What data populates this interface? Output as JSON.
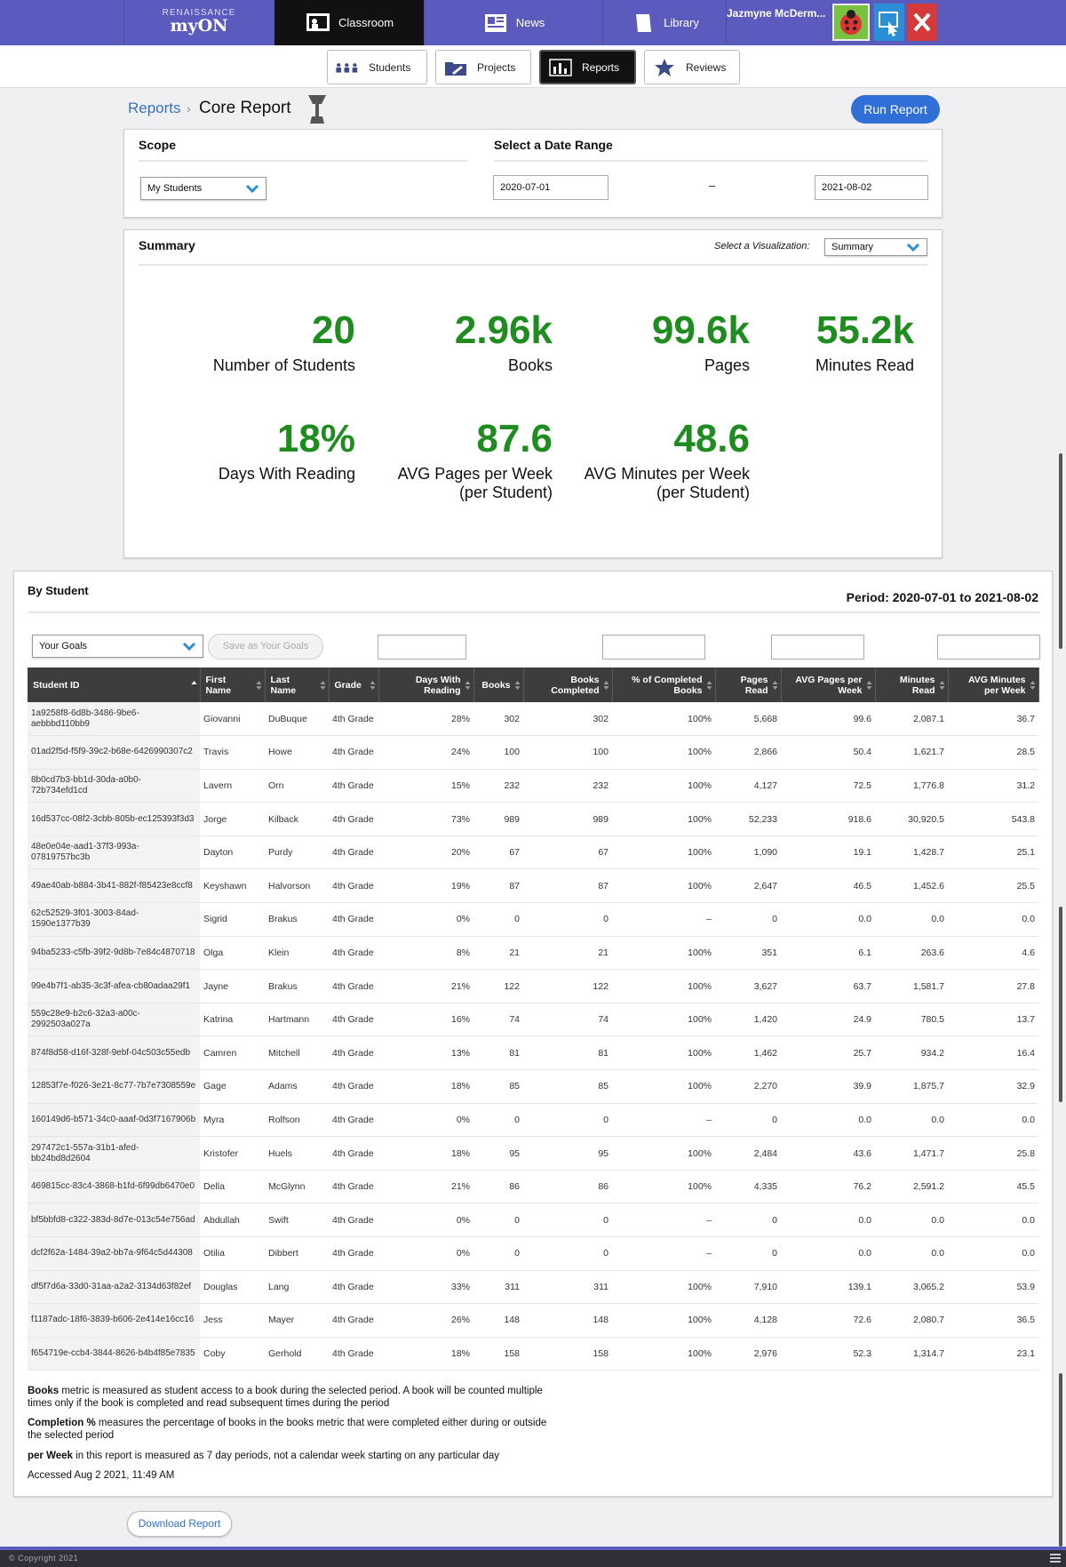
{
  "topnav": {
    "brand_small": "RENAISSANCE",
    "brand_big": "myON",
    "tabs": [
      {
        "label": "Classroom",
        "icon": "classroom-icon",
        "active": true
      },
      {
        "label": "News",
        "icon": "news-icon",
        "active": false
      },
      {
        "label": "Library",
        "icon": "library-icon",
        "active": false
      }
    ],
    "user_name": "Jazmyne McDerm..."
  },
  "subnav": {
    "tabs": [
      {
        "label": "Students",
        "icon": "students-icon"
      },
      {
        "label": "Projects",
        "icon": "projects-icon"
      },
      {
        "label": "Reports",
        "icon": "reports-icon",
        "active": true
      },
      {
        "label": "Reviews",
        "icon": "star-icon"
      }
    ]
  },
  "header": {
    "breadcrumb_link": "Reports",
    "breadcrumb_sep": "›",
    "title": "Core Report",
    "run_label": "Run Report"
  },
  "filters": {
    "scope_title": "Scope",
    "scope_value": "My Students",
    "date_title": "Select a Date Range",
    "date_from": "2020-07-01",
    "date_dash": "–",
    "date_to": "2021-08-02"
  },
  "summary": {
    "title": "Summary",
    "viz_label": "Select a Visualization:",
    "viz_value": "Summary",
    "kpis": [
      {
        "value": "20",
        "label": "Number of Students"
      },
      {
        "value": "2.96k",
        "label": "Books"
      },
      {
        "value": "99.6k",
        "label": "Pages"
      },
      {
        "value": "55.2k",
        "label": "Minutes Read"
      },
      {
        "value": "18%",
        "label": "Days With Reading"
      },
      {
        "value": "87.6",
        "label": "AVG Pages per Week",
        "label2": "(per Student)"
      },
      {
        "value": "48.6",
        "label": "AVG Minutes per Week",
        "label2": "(per Student)"
      }
    ]
  },
  "by_student": {
    "title": "By Student",
    "period": "Period: 2020-07-01 to 2021-08-02",
    "goals_value": "Your Goals",
    "save_goals_label": "Save as Your Goals",
    "columns": [
      "Student ID",
      "First Name",
      "Last Name",
      "Grade",
      "Days With Reading",
      "Books",
      "Books Completed",
      "% of Completed Books",
      "Pages Read",
      "AVG Pages per Week",
      "Minutes Read",
      "AVG Minutes per Week"
    ],
    "rows": [
      [
        "1a9258f8-6d8b-3486-9be6-aebbbd110bb9",
        "Giovanni",
        "DuBuque",
        "4th Grade",
        "28%",
        "302",
        "302",
        "100%",
        "5,668",
        "99.6",
        "2,087.1",
        "36.7"
      ],
      [
        "01ad2f5d-f5f9-39c2-b68e-6426990307c2",
        "Travis",
        "Howe",
        "4th Grade",
        "24%",
        "100",
        "100",
        "100%",
        "2,866",
        "50.4",
        "1,621.7",
        "28.5"
      ],
      [
        "8b0cd7b3-bb1d-30da-a0b0-72b734efd1cd",
        "Lavern",
        "Orn",
        "4th Grade",
        "15%",
        "232",
        "232",
        "100%",
        "4,127",
        "72.5",
        "1,776.8",
        "31.2"
      ],
      [
        "16d537cc-08f2-3cbb-805b-ec125393f3d3",
        "Jorge",
        "Kilback",
        "4th Grade",
        "73%",
        "989",
        "989",
        "100%",
        "52,233",
        "918.6",
        "30,920.5",
        "543.8"
      ],
      [
        "48e0e04e-aad1-37f3-993a-07819757bc3b",
        "Dayton",
        "Purdy",
        "4th Grade",
        "20%",
        "67",
        "67",
        "100%",
        "1,090",
        "19.1",
        "1,428.7",
        "25.1"
      ],
      [
        "49ae40ab-b884-3b41-882f-f85423e8ccf8",
        "Keyshawn",
        "Halvorson",
        "4th Grade",
        "19%",
        "87",
        "87",
        "100%",
        "2,647",
        "46.5",
        "1,452.6",
        "25.5"
      ],
      [
        "62c52529-3f01-3003-84ad-1590e1377b39",
        "Sigrid",
        "Brakus",
        "4th Grade",
        "0%",
        "0",
        "0",
        "–",
        "0",
        "0.0",
        "0.0",
        "0.0"
      ],
      [
        "94ba5233-c5fb-39f2-9d8b-7e84c4870718",
        "Olga",
        "Klein",
        "4th Grade",
        "8%",
        "21",
        "21",
        "100%",
        "351",
        "6.1",
        "263.6",
        "4.6"
      ],
      [
        "99e4b7f1-ab35-3c3f-afea-cb80adaa29f1",
        "Jayne",
        "Brakus",
        "4th Grade",
        "21%",
        "122",
        "122",
        "100%",
        "3,627",
        "63.7",
        "1,581.7",
        "27.8"
      ],
      [
        "559c28e9-b2c6-32a3-a00c-2992503a027a",
        "Katrina",
        "Hartmann",
        "4th Grade",
        "16%",
        "74",
        "74",
        "100%",
        "1,420",
        "24.9",
        "780.5",
        "13.7"
      ],
      [
        "874f8d58-d16f-328f-9ebf-04c503c55edb",
        "Camren",
        "Mitchell",
        "4th Grade",
        "13%",
        "81",
        "81",
        "100%",
        "1,462",
        "25.7",
        "934.2",
        "16.4"
      ],
      [
        "12853f7e-f026-3e21-8c77-7b7e7308559e",
        "Gage",
        "Adams",
        "4th Grade",
        "18%",
        "85",
        "85",
        "100%",
        "2,270",
        "39.9",
        "1,875.7",
        "32.9"
      ],
      [
        "160149d6-b571-34c0-aaaf-0d3f7167906b",
        "Myra",
        "Rolfson",
        "4th Grade",
        "0%",
        "0",
        "0",
        "–",
        "0",
        "0.0",
        "0.0",
        "0.0"
      ],
      [
        "297472c1-557a-31b1-afed-bb24bd8d2604",
        "Kristofer",
        "Huels",
        "4th Grade",
        "18%",
        "95",
        "95",
        "100%",
        "2,484",
        "43.6",
        "1,471.7",
        "25.8"
      ],
      [
        "469815cc-83c4-3868-b1fd-6f99db6470e0",
        "Della",
        "McGlynn",
        "4th Grade",
        "21%",
        "86",
        "86",
        "100%",
        "4,335",
        "76.2",
        "2,591.2",
        "45.5"
      ],
      [
        "bf5bbfd8-c322-383d-8d7e-013c54e756ad",
        "Abdullah",
        "Swift",
        "4th Grade",
        "0%",
        "0",
        "0",
        "–",
        "0",
        "0.0",
        "0.0",
        "0.0"
      ],
      [
        "dcf2f62a-1484-39a2-bb7a-9f64c5d44308",
        "Otilia",
        "Dibbert",
        "4th Grade",
        "0%",
        "0",
        "0",
        "–",
        "0",
        "0.0",
        "0.0",
        "0.0"
      ],
      [
        "df5f7d6a-33d0-31aa-a2a2-3134d63f82ef",
        "Douglas",
        "Lang",
        "4th Grade",
        "33%",
        "311",
        "311",
        "100%",
        "7,910",
        "139.1",
        "3,065.2",
        "53.9"
      ],
      [
        "f1187adc-18f6-3839-b606-2e414e16cc16",
        "Jess",
        "Mayer",
        "4th Grade",
        "26%",
        "148",
        "148",
        "100%",
        "4,128",
        "72.6",
        "2,080.7",
        "36.5"
      ],
      [
        "f654719e-ccb4-3844-8626-b4b4f85e7835",
        "Coby",
        "Gerhold",
        "4th Grade",
        "18%",
        "158",
        "158",
        "100%",
        "2,976",
        "52.3",
        "1,314.7",
        "23.1"
      ]
    ]
  },
  "notes": {
    "books_term": "Books",
    "books_text": " metric is measured as student access to a book during the selected period. A book will be counted multiple times only if the book is completed and read subsequent times during the period",
    "completion_term": "Completion %",
    "completion_text": " measures the percentage of books in the books metric that were completed either during or outside the selected period",
    "week_term": "per Week",
    "week_text": " in this report is measured as 7 day periods, not a calendar week starting on any particular day",
    "accessed": "Accessed Aug 2 2021, 11:49 AM"
  },
  "download_label": "Download Report",
  "footer": {
    "copyright": "© Copyright 2021"
  },
  "colors": {
    "nav": "#5a5bbd",
    "kpi_green": "#1f8c1f",
    "link_blue": "#2f6fd6"
  }
}
